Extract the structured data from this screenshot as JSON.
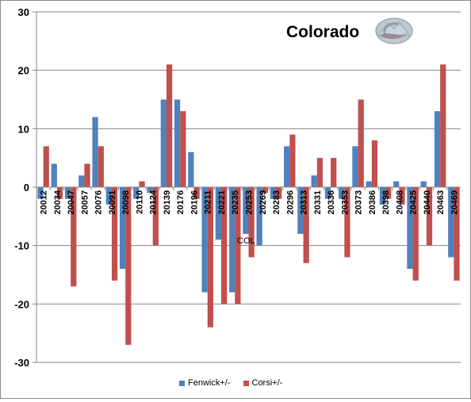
{
  "chart_data": {
    "type": "bar",
    "title": "Colorado",
    "xlabel": "",
    "ylabel": "",
    "ylim": [
      -30,
      30
    ],
    "yticks": [
      30,
      20,
      10,
      0,
      -10,
      -20,
      -30
    ],
    "grid": "horizontal major gridlines",
    "legend_position": "bottom",
    "annotation": "COL",
    "logo": "Colorado Avalanche logo",
    "categories": [
      "20012",
      "20034",
      "20047",
      "20057",
      "20076",
      "20091",
      "20098",
      "20110",
      "20124",
      "20139",
      "20176",
      "20196",
      "20211",
      "20221",
      "20235",
      "20253",
      "20269",
      "20283",
      "20296",
      "20313",
      "20331",
      "20336",
      "20353",
      "20373",
      "20386",
      "20398",
      "20408",
      "20425",
      "20440",
      "20463",
      "20469"
    ],
    "series": [
      {
        "name": "Fenwick+/-",
        "color": "#4f81bd",
        "values": [
          -2,
          4,
          -2,
          2,
          12,
          -3,
          -14,
          -2,
          -1,
          15,
          15,
          6,
          -18,
          -9,
          -18,
          -8,
          -10,
          -2,
          7,
          -8,
          2,
          -2,
          -2,
          7,
          1,
          -3,
          1,
          -14,
          1,
          13,
          -12
        ]
      },
      {
        "name": "Corsi+/-",
        "color": "#c0504d",
        "values": [
          7,
          -2,
          -17,
          4,
          7,
          -16,
          -27,
          1,
          -10,
          21,
          13,
          -2,
          -24,
          -20,
          -20,
          -12,
          -1,
          -2,
          9,
          -13,
          5,
          5,
          -12,
          15,
          8,
          -2,
          -3,
          -16,
          -10,
          21,
          -16
        ]
      }
    ]
  }
}
